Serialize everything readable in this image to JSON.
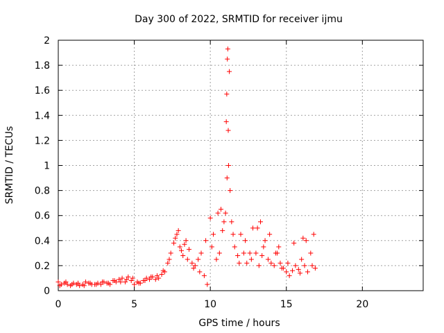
{
  "chart_data": {
    "type": "scatter",
    "title": "Day 300 of 2022, SRMTID for receiver ijmu",
    "xlabel": "GPS time / hours",
    "ylabel": "SRMTID / TECUs",
    "xlim": [
      0,
      24
    ],
    "ylim": [
      0,
      2
    ],
    "xticks": [
      0,
      5,
      10,
      15,
      20
    ],
    "yticks": [
      0,
      0.2,
      0.4,
      0.6,
      0.8,
      1,
      1.2,
      1.4,
      1.6,
      1.8,
      2
    ],
    "xtick_labels": [
      "0",
      "5",
      "10",
      "15",
      "20"
    ],
    "ytick_labels": [
      "0",
      "0.2",
      "0.4",
      "0.6",
      "0.8",
      "1",
      "1.2",
      "1.4",
      "1.6",
      "1.8",
      "2"
    ],
    "grid": true,
    "marker": "plus",
    "color": "#ff0000",
    "series": [
      {
        "name": "SRMTID",
        "x": [
          0.0,
          0.2,
          0.4,
          0.6,
          0.8,
          1.0,
          1.2,
          1.4,
          1.6,
          1.8,
          2.0,
          2.2,
          2.4,
          2.6,
          2.8,
          3.0,
          3.2,
          3.4,
          3.6,
          3.8,
          4.0,
          4.2,
          4.4,
          4.6,
          4.8,
          5.0,
          5.2,
          5.4,
          5.6,
          5.8,
          6.0,
          6.2,
          6.4,
          6.6,
          6.8,
          7.0,
          7.2,
          7.4,
          7.6,
          7.8,
          8.0,
          8.2,
          8.4,
          8.6,
          8.8,
          9.0,
          9.2,
          9.4,
          9.6,
          9.8,
          10.0,
          10.2,
          10.4,
          10.6,
          10.8,
          11.0,
          11.1,
          11.2,
          11.3,
          11.4,
          11.6,
          11.8,
          12.0,
          12.2,
          12.4,
          12.6,
          12.8,
          13.0,
          13.2,
          13.4,
          13.6,
          13.8,
          14.0,
          14.2,
          14.4,
          14.6,
          14.8,
          15.0,
          15.2,
          15.4,
          15.6,
          15.8,
          16.0,
          16.2,
          16.4,
          16.6,
          16.8,
          0.1,
          0.5,
          0.9,
          1.3,
          1.7,
          2.1,
          2.5,
          2.9,
          3.3,
          3.7,
          4.1,
          4.5,
          4.9,
          5.3,
          5.7,
          6.1,
          6.5,
          6.9,
          7.3,
          7.7,
          8.1,
          8.5,
          8.9,
          9.3,
          9.7,
          10.1,
          10.5,
          10.9,
          11.15,
          11.25,
          11.5,
          11.9,
          12.3,
          12.7,
          13.1,
          13.5,
          13.9,
          14.3,
          14.7,
          15.1,
          15.5,
          15.9,
          16.3,
          16.7,
          16.9,
          7.9,
          8.3,
          10.7,
          11.05,
          11.08,
          11.12,
          11.18,
          13.3,
          14.5,
          16.1
        ],
        "y": [
          0.07,
          0.05,
          0.06,
          0.05,
          0.04,
          0.06,
          0.05,
          0.04,
          0.05,
          0.07,
          0.06,
          0.05,
          0.05,
          0.06,
          0.05,
          0.07,
          0.06,
          0.05,
          0.08,
          0.07,
          0.09,
          0.1,
          0.07,
          0.11,
          0.08,
          0.05,
          0.07,
          0.06,
          0.08,
          0.1,
          0.09,
          0.11,
          0.09,
          0.1,
          0.13,
          0.15,
          0.22,
          0.3,
          0.38,
          0.45,
          0.35,
          0.28,
          0.4,
          0.33,
          0.22,
          0.2,
          0.25,
          0.3,
          0.12,
          0.05,
          0.58,
          0.45,
          0.25,
          0.3,
          0.48,
          0.62,
          0.9,
          1.0,
          0.8,
          0.55,
          0.35,
          0.28,
          0.45,
          0.3,
          0.22,
          0.3,
          0.5,
          0.3,
          0.2,
          0.28,
          0.4,
          0.25,
          0.22,
          0.2,
          0.3,
          0.22,
          0.18,
          0.15,
          0.12,
          0.16,
          0.2,
          0.17,
          0.25,
          0.2,
          0.15,
          0.3,
          0.45,
          0.04,
          0.07,
          0.05,
          0.06,
          0.04,
          0.06,
          0.05,
          0.07,
          0.06,
          0.08,
          0.07,
          0.09,
          0.1,
          0.06,
          0.08,
          0.11,
          0.12,
          0.16,
          0.25,
          0.42,
          0.32,
          0.25,
          0.18,
          0.15,
          0.4,
          0.35,
          0.62,
          0.55,
          1.93,
          1.75,
          0.45,
          0.22,
          0.4,
          0.25,
          0.5,
          0.35,
          0.45,
          0.3,
          0.18,
          0.22,
          0.38,
          0.14,
          0.4,
          0.2,
          0.18,
          0.48,
          0.37,
          0.65,
          1.35,
          1.57,
          1.85,
          1.28,
          0.55,
          0.35,
          0.42
        ]
      }
    ]
  }
}
